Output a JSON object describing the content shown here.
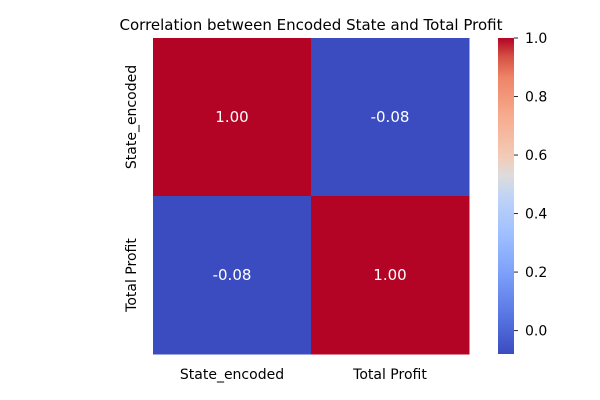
{
  "chart_data": {
    "type": "heatmap",
    "title": "Correlation between Encoded State and Total Profit",
    "xlabel": "",
    "ylabel": "",
    "x_categories": [
      "State_encoded",
      "Total Profit"
    ],
    "y_categories": [
      "State_encoded",
      "Total Profit"
    ],
    "matrix": [
      [
        1.0,
        -0.08
      ],
      [
        -0.08,
        1.0
      ]
    ],
    "annotations": [
      [
        "1.00",
        "-0.08"
      ],
      [
        "-0.08",
        "1.00"
      ]
    ],
    "colormap": "coolwarm",
    "vmin": -0.08,
    "vmax": 1.0,
    "colorbar": {
      "ticks": [
        "0.0",
        "0.2",
        "0.4",
        "0.6",
        "0.8",
        "1.0"
      ],
      "tick_values": [
        0.0,
        0.2,
        0.4,
        0.6,
        0.8,
        1.0
      ]
    },
    "grid": false,
    "colors": {
      "high": "#b40426",
      "low": "#3b4cc0"
    }
  }
}
